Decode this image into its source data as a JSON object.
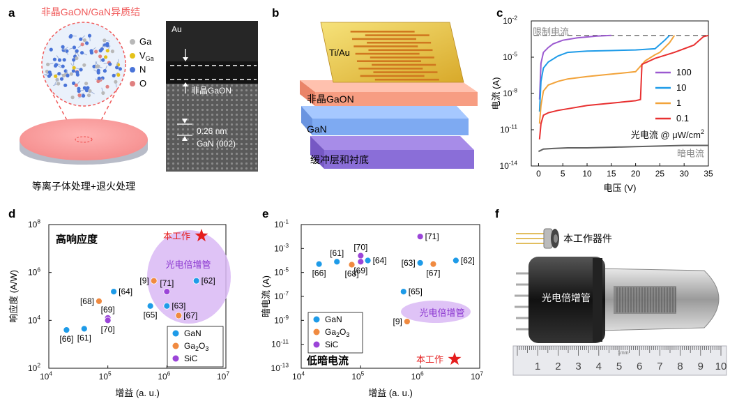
{
  "panels": {
    "a": {
      "letter": "a",
      "title": "非晶GaON/GaN异质结",
      "legend": [
        {
          "label": "Ga",
          "color": "#b8b8b8"
        },
        {
          "label": "V",
          "sub": "Ga",
          "color": "#e5c21a"
        },
        {
          "label": "N",
          "color": "#4a74d8"
        },
        {
          "label": "O",
          "color": "#e08080"
        }
      ],
      "caption": "等离子体处理+退火处理",
      "tem": {
        "au": "Au",
        "layer": "非晶GaON",
        "spacing": "0.26 nm",
        "plane": "GaN (002)"
      }
    },
    "b": {
      "letter": "b",
      "layers": {
        "electrode": "Ti/Au",
        "gaon": "非晶GaON",
        "gan": "GaN",
        "buffer": "缓冲层和衬底"
      }
    },
    "c": {
      "letter": "c",
      "chart_data": {
        "type": "line",
        "xlabel": "电压 (V)",
        "ylabel": "电流 (A)",
        "xlim": [
          -1.5,
          35
        ],
        "ylim_exp": [
          -14,
          -2
        ],
        "y_scale": "log",
        "xticks": [
          0,
          5,
          10,
          15,
          20,
          25,
          30,
          35
        ],
        "yticks_exp": [
          -14,
          -11,
          -8,
          -5,
          -2
        ],
        "limit_label": "限制电流",
        "limit_exp": -3.2,
        "dark_label": "暗电流",
        "legend_title": "光电流 @ μW/cm",
        "legend_sup": "2",
        "series": [
          {
            "name": "100",
            "color": "#9b59d0",
            "x": [
              0.2,
              0.5,
              1,
              2,
              3,
              5,
              8,
              12,
              15
            ],
            "y_exp": [
              -8.5,
              -5.5,
              -4.6,
              -4.2,
              -3.9,
              -3.6,
              -3.4,
              -3.25,
              -3.2
            ]
          },
          {
            "name": "10",
            "color": "#1e9be8",
            "x": [
              0.2,
              0.5,
              1,
              2,
              4,
              6,
              10,
              15,
              20,
              24,
              26,
              27
            ],
            "y_exp": [
              -9.5,
              -7,
              -5.9,
              -5.4,
              -4.9,
              -4.6,
              -4.5,
              -4.45,
              -4.4,
              -4.3,
              -3.6,
              -3.2
            ]
          },
          {
            "name": "1",
            "color": "#f2a33a",
            "x": [
              0.2,
              0.5,
              1,
              2,
              4,
              6,
              10,
              15,
              20,
              22,
              24,
              25,
              26,
              27,
              28
            ],
            "y_exp": [
              -10.5,
              -9,
              -7.8,
              -7.3,
              -7.0,
              -6.8,
              -6.6,
              -6.4,
              -6.2,
              -5.3,
              -4.8,
              -4.6,
              -4.2,
              -3.8,
              -3.2
            ]
          },
          {
            "name": "0.1",
            "color": "#e83030",
            "x": [
              0.2,
              0.5,
              1,
              2,
              4,
              7,
              10,
              15,
              20,
              21,
              21.3,
              24,
              28,
              32,
              34,
              35
            ],
            "y_exp": [
              -11.8,
              -10.5,
              -9.8,
              -9.6,
              -9.4,
              -9.2,
              -9.0,
              -8.8,
              -8.6,
              -8.5,
              -5.6,
              -5.1,
              -4.6,
              -4.0,
              -3.3,
              -3.2
            ]
          },
          {
            "name": "",
            "color": "#606060",
            "x": [
              0,
              1,
              3,
              6,
              10,
              15,
              20,
              25,
              30,
              35
            ],
            "y_exp": [
              -12.8,
              -12.6,
              -12.55,
              -12.5,
              -12.5,
              -12.45,
              -12.4,
              -12.35,
              -12.3,
              -12.3
            ]
          }
        ]
      }
    },
    "d": {
      "letter": "d",
      "chart_data": {
        "type": "scatter",
        "xlabel": "增益 (a. u.)",
        "ylabel": "响应度 (A/W)",
        "x_scale": "log",
        "y_scale": "log",
        "xlim_exp": [
          4,
          7
        ],
        "ylim_exp": [
          2,
          8
        ],
        "xticks_exp": [
          4,
          5,
          6,
          7
        ],
        "yticks_exp": [
          2,
          4,
          6,
          8
        ],
        "title": "高响应度",
        "this_work": "本工作",
        "region_label": "光电倍增管",
        "legend": [
          {
            "label": "GaN",
            "color": "#1e9be8"
          },
          {
            "label": "Ga",
            "sub": "2",
            "tail": "O",
            "sub2": "3",
            "color": "#f08a40"
          },
          {
            "label": "SiC",
            "color": "#9b45d8"
          }
        ],
        "points": [
          {
            "ref": "[66]",
            "lx": 4.3,
            "ly": 3.6,
            "label_pos": "below",
            "color": "#1e9be8"
          },
          {
            "ref": "[61]",
            "lx": 4.6,
            "ly": 3.65,
            "label_pos": "below",
            "color": "#1e9be8"
          },
          {
            "ref": "[64]",
            "lx": 5.1,
            "ly": 5.2,
            "label_pos": "right",
            "color": "#1e9be8"
          },
          {
            "ref": "[68]",
            "lx": 4.85,
            "ly": 4.8,
            "label_pos": "left",
            "color": "#f08a40"
          },
          {
            "ref": "[69]",
            "lx": 5.0,
            "ly": 4.1,
            "label_pos": "above",
            "color": "#9b45d8"
          },
          {
            "ref": "[70]",
            "lx": 5.0,
            "ly": 4.0,
            "label_pos": "below",
            "color": "#9b45d8"
          },
          {
            "ref": "[65]",
            "lx": 5.72,
            "ly": 4.6,
            "label_pos": "below",
            "color": "#1e9be8"
          },
          {
            "ref": "[63]",
            "lx": 6.0,
            "ly": 4.6,
            "label_pos": "right",
            "color": "#1e9be8"
          },
          {
            "ref": "[9]",
            "lx": 5.78,
            "ly": 5.65,
            "label_pos": "left",
            "color": "#f08a40"
          },
          {
            "ref": "[71]",
            "lx": 6.0,
            "ly": 5.2,
            "label_pos": "above",
            "color": "#9b45d8"
          },
          {
            "ref": "[62]",
            "lx": 6.5,
            "ly": 5.65,
            "label_pos": "right",
            "color": "#1e9be8"
          },
          {
            "ref": "[67]",
            "lx": 6.2,
            "ly": 4.2,
            "label_pos": "right",
            "color": "#f08a40"
          }
        ]
      }
    },
    "e": {
      "letter": "e",
      "chart_data": {
        "type": "scatter",
        "xlabel": "增益 (a. u.)",
        "ylabel": "暗电流 (A)",
        "x_scale": "log",
        "y_scale": "log",
        "xlim_exp": [
          4,
          7
        ],
        "ylim_exp": [
          -13,
          -1
        ],
        "xticks_exp": [
          4,
          5,
          6,
          7
        ],
        "yticks_exp": [
          -13,
          -11,
          -9,
          -7,
          -5,
          -3,
          -1
        ],
        "title": "低暗电流",
        "this_work": "本工作",
        "region_label": "光电倍增管",
        "legend": [
          {
            "label": "GaN",
            "color": "#1e9be8"
          },
          {
            "label": "Ga",
            "sub": "2",
            "tail": "O",
            "sub2": "3",
            "color": "#f08a40"
          },
          {
            "label": "SiC",
            "color": "#9b45d8"
          }
        ],
        "points": [
          {
            "ref": "[66]",
            "lx": 4.3,
            "ly": -4.3,
            "label_pos": "below",
            "color": "#1e9be8"
          },
          {
            "ref": "[61]",
            "lx": 4.6,
            "ly": -4.1,
            "label_pos": "above",
            "color": "#1e9be8"
          },
          {
            "ref": "[68]",
            "lx": 4.85,
            "ly": -4.35,
            "label_pos": "below",
            "color": "#f08a40"
          },
          {
            "ref": "[70]",
            "lx": 5.0,
            "ly": -3.6,
            "label_pos": "above",
            "color": "#9b45d8"
          },
          {
            "ref": "[69]",
            "lx": 5.0,
            "ly": -4.1,
            "label_pos": "below",
            "color": "#9b45d8"
          },
          {
            "ref": "[64]",
            "lx": 5.12,
            "ly": -4.0,
            "label_pos": "right",
            "color": "#1e9be8"
          },
          {
            "ref": "[71]",
            "lx": 6.0,
            "ly": -2.0,
            "label_pos": "right",
            "color": "#9b45d8"
          },
          {
            "ref": "[63]",
            "lx": 6.0,
            "ly": -4.2,
            "label_pos": "left",
            "color": "#1e9be8"
          },
          {
            "ref": "[67]",
            "lx": 6.22,
            "ly": -4.3,
            "label_pos": "below",
            "color": "#f08a40"
          },
          {
            "ref": "[62]",
            "lx": 6.6,
            "ly": -4.0,
            "label_pos": "right",
            "color": "#1e9be8"
          },
          {
            "ref": "[65]",
            "lx": 5.72,
            "ly": -6.6,
            "label_pos": "right",
            "color": "#1e9be8"
          },
          {
            "ref": "[9]",
            "lx": 5.78,
            "ly": -9.1,
            "label_pos": "left",
            "color": "#f08a40"
          }
        ]
      }
    },
    "f": {
      "letter": "f",
      "device_label": "本工作器件",
      "pmt_label": "光电倍增管",
      "ruler_numbers": [
        "1",
        "2",
        "3",
        "4",
        "5",
        "6",
        "7",
        "8",
        "9",
        "10"
      ],
      "ruler_unit": "1mm"
    }
  }
}
